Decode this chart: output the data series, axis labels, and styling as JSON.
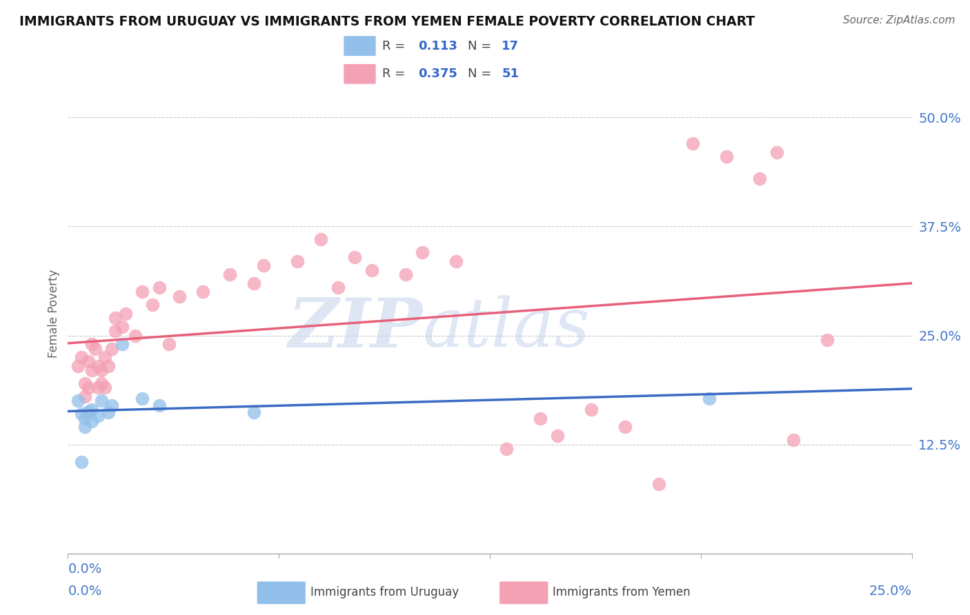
{
  "title": "IMMIGRANTS FROM URUGUAY VS IMMIGRANTS FROM YEMEN FEMALE POVERTY CORRELATION CHART",
  "source": "Source: ZipAtlas.com",
  "ylabel": "Female Poverty",
  "ytick_vals": [
    0.0,
    0.125,
    0.25,
    0.375,
    0.5
  ],
  "ytick_labels": [
    "",
    "12.5%",
    "25.0%",
    "37.5%",
    "50.0%"
  ],
  "xtick_positions": [
    0.0,
    0.0625,
    0.125,
    0.1875,
    0.25
  ],
  "xlim": [
    0.0,
    0.25
  ],
  "ylim": [
    0.0,
    0.55
  ],
  "r_uruguay": 0.113,
  "n_uruguay": 17,
  "r_yemen": 0.375,
  "n_yemen": 51,
  "color_uruguay": "#92C0EA",
  "color_yemen": "#F4A0B5",
  "line_color_uruguay": "#3B6BC4",
  "line_color_yemen": "#E8607A",
  "background_color": "#FFFFFF",
  "watermark_zip": "ZIP",
  "watermark_atlas": "atlas",
  "legend_label_uruguay": "Immigrants from Uruguay",
  "legend_label_yemen": "Immigrants from Yemen",
  "uruguay_x": [
    0.003,
    0.004,
    0.005,
    0.005,
    0.006,
    0.007,
    0.007,
    0.009,
    0.01,
    0.012,
    0.013,
    0.016,
    0.022,
    0.027,
    0.055,
    0.19,
    0.004
  ],
  "uruguay_y": [
    0.175,
    0.16,
    0.155,
    0.145,
    0.163,
    0.152,
    0.165,
    0.158,
    0.175,
    0.162,
    0.17,
    0.24,
    0.178,
    0.17,
    0.162,
    0.178,
    0.105
  ],
  "yemen_x": [
    0.003,
    0.004,
    0.005,
    0.005,
    0.006,
    0.006,
    0.007,
    0.007,
    0.008,
    0.009,
    0.009,
    0.01,
    0.01,
    0.011,
    0.011,
    0.012,
    0.013,
    0.014,
    0.014,
    0.016,
    0.017,
    0.02,
    0.022,
    0.025,
    0.027,
    0.03,
    0.033,
    0.04,
    0.048,
    0.055,
    0.058,
    0.068,
    0.075,
    0.08,
    0.085,
    0.09,
    0.1,
    0.105,
    0.115,
    0.13,
    0.14,
    0.145,
    0.155,
    0.165,
    0.175,
    0.185,
    0.195,
    0.205,
    0.21,
    0.215,
    0.225
  ],
  "yemen_y": [
    0.215,
    0.225,
    0.195,
    0.18,
    0.22,
    0.19,
    0.24,
    0.21,
    0.235,
    0.215,
    0.19,
    0.21,
    0.195,
    0.225,
    0.19,
    0.215,
    0.235,
    0.27,
    0.255,
    0.26,
    0.275,
    0.25,
    0.3,
    0.285,
    0.305,
    0.24,
    0.295,
    0.3,
    0.32,
    0.31,
    0.33,
    0.335,
    0.36,
    0.305,
    0.34,
    0.325,
    0.32,
    0.345,
    0.335,
    0.12,
    0.155,
    0.135,
    0.165,
    0.145,
    0.08,
    0.47,
    0.455,
    0.43,
    0.46,
    0.13,
    0.245
  ]
}
